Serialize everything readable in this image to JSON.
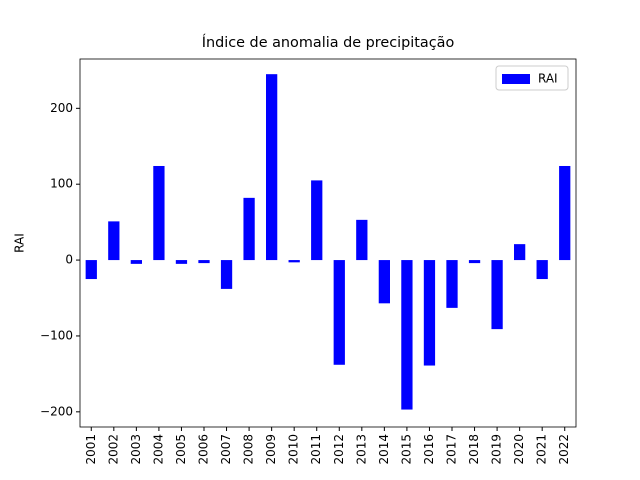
{
  "chart_data": {
    "type": "bar",
    "title": "Índice de anomalia de precipitação",
    "y_label": "RAI",
    "categories": [
      "2001",
      "2002",
      "2003",
      "2004",
      "2005",
      "2006",
      "2007",
      "2008",
      "2009",
      "2010",
      "2011",
      "2012",
      "2013",
      "2014",
      "2015",
      "2016",
      "2017",
      "2018",
      "2019",
      "2020",
      "2021",
      "2022"
    ],
    "series": [
      {
        "name": "RAI",
        "color": "#0000ff",
        "values": [
          -25,
          51,
          -5,
          124,
          -5,
          -4,
          -38,
          82,
          245,
          -3,
          105,
          -138,
          53,
          -57,
          -197,
          -139,
          -63,
          -4,
          -91,
          21,
          -25,
          124
        ]
      }
    ],
    "ylim": [
      -220,
      265
    ],
    "yticks": [
      {
        "value": -200,
        "label": "−200"
      },
      {
        "value": -100,
        "label": "−100"
      },
      0,
      100,
      200
    ],
    "legend": "upper right"
  }
}
